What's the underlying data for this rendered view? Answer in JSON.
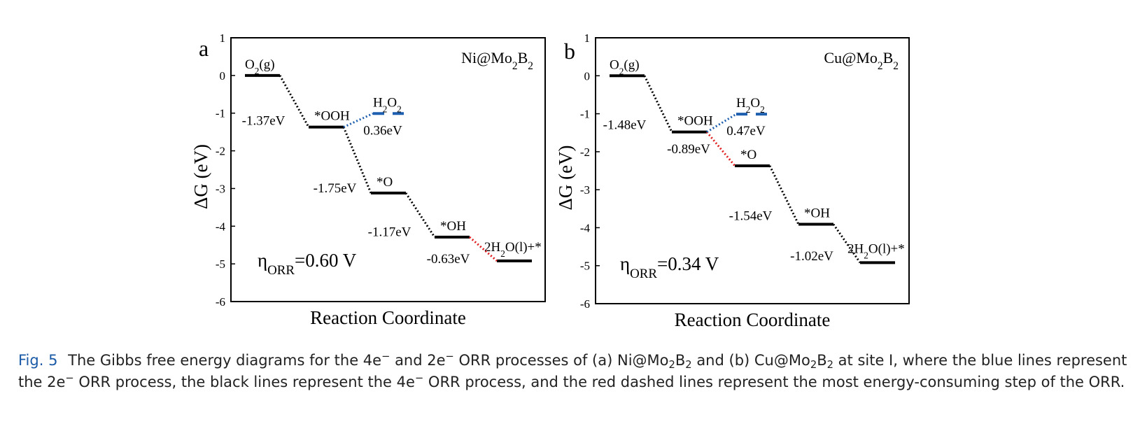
{
  "caption": {
    "fig_num": "Fig. 5",
    "parts": [
      {
        "t": "The Gibbs free energy diagrams for the 4e"
      },
      {
        "t": "−",
        "sup": true
      },
      {
        "t": " and 2e"
      },
      {
        "t": "−",
        "sup": true
      },
      {
        "t": " ORR processes of (a) Ni@Mo"
      },
      {
        "t": "2",
        "sub": true
      },
      {
        "t": "B"
      },
      {
        "t": "2",
        "sub": true
      },
      {
        "t": " and (b) Cu@Mo"
      },
      {
        "t": "2",
        "sub": true
      },
      {
        "t": "B"
      },
      {
        "t": "2",
        "sub": true
      },
      {
        "t": " at site I, where the blue lines represent the 2e"
      },
      {
        "t": "−",
        "sup": true
      },
      {
        "t": " ORR process, the black lines represent the 4e"
      },
      {
        "t": "−",
        "sup": true
      },
      {
        "t": " ORR process, and the red dashed lines represent the most energy-consuming step of the ORR."
      }
    ]
  },
  "chart_data": [
    {
      "type": "line",
      "panel_label": "a",
      "title": "Ni@Mo2B2",
      "xlabel": "Reaction Coordinate",
      "ylabel": "ΔG (eV)",
      "ylim": [
        -6,
        1
      ],
      "yticks": [
        "-6",
        "-5",
        "-4",
        "-3",
        "-2",
        "-1",
        "0",
        "1"
      ],
      "overpotential": "ηORR=0.60 V",
      "states": [
        {
          "name": "O2(g)",
          "x": 0,
          "G": 0.0
        },
        {
          "name": "*OOH",
          "x": 1,
          "G": -1.37
        },
        {
          "name": "*O",
          "x": 2,
          "G": -3.12
        },
        {
          "name": "*OH",
          "x": 3,
          "G": -4.29
        },
        {
          "name": "2H2O(l)+*",
          "x": 4,
          "G": -4.92
        }
      ],
      "h2o2": {
        "name": "H2O2",
        "G": -1.01
      },
      "step_labels": [
        "-1.37eV",
        "-1.75eV",
        "-1.17eV",
        "-0.63eV"
      ],
      "h2o2_label": "0.36eV",
      "limiting_step": 3,
      "colors": {
        "four_e": "#000000",
        "two_e": "#1f5fb0",
        "limiting": "#e02020"
      }
    },
    {
      "type": "line",
      "panel_label": "b",
      "title": "Cu@Mo2B2",
      "xlabel": "Reaction Coordinate",
      "ylabel": "ΔG (eV)",
      "ylim": [
        -6,
        1
      ],
      "yticks": [
        "-6",
        "-5",
        "-4",
        "-3",
        "-2",
        "-1",
        "0",
        "1"
      ],
      "overpotential": "ηORR=0.34 V",
      "states": [
        {
          "name": "O2(g)",
          "x": 0,
          "G": 0.0
        },
        {
          "name": "*OOH",
          "x": 1,
          "G": -1.48
        },
        {
          "name": "*O",
          "x": 2,
          "G": -2.37
        },
        {
          "name": "*OH",
          "x": 3,
          "G": -3.91
        },
        {
          "name": "2H2O(l)+*",
          "x": 4,
          "G": -4.92
        }
      ],
      "h2o2": {
        "name": "H2O2",
        "G": -1.01
      },
      "step_labels": [
        "-1.48eV",
        "-0.89eV",
        "-1.54eV",
        "-1.02eV"
      ],
      "h2o2_label": "0.47eV",
      "limiting_step": 1,
      "colors": {
        "four_e": "#000000",
        "two_e": "#1f5fb0",
        "limiting": "#e02020"
      }
    }
  ]
}
